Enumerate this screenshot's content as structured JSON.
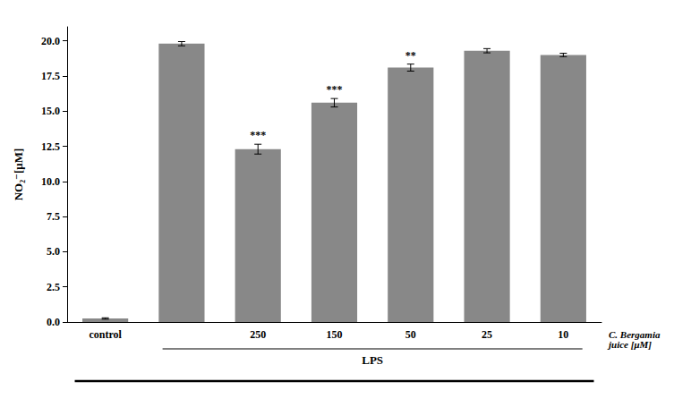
{
  "chart_data": {
    "type": "bar",
    "categories": [
      "control",
      null,
      "250",
      "150",
      "50",
      "25",
      "10"
    ],
    "values": [
      0.25,
      19.8,
      12.3,
      15.6,
      18.1,
      19.3,
      19.0
    ],
    "errors": [
      0.05,
      0.15,
      0.35,
      0.3,
      0.25,
      0.15,
      0.12
    ],
    "color": "#888888",
    "ylabel": "NO₂⁻[μM]",
    "xlabel": "C. Bergamia\njuice [μM]",
    "ylim": [
      0.0,
      21.0
    ],
    "yticks": [
      {
        "value": 0,
        "label": "0.0"
      },
      2.5,
      {
        "value": 5,
        "label": "5.0"
      },
      7.5,
      {
        "value": 10,
        "label": "10.0"
      },
      12.5,
      {
        "value": 15,
        "label": "15.0"
      },
      17.5,
      {
        "value": 20,
        "label": "20.0"
      }
    ],
    "grid": false,
    "annotations": [
      {
        "text": "***",
        "category": "250"
      },
      {
        "text": "***",
        "category": "150"
      },
      {
        "text": "**",
        "category": "50"
      },
      {
        "text": "LPS",
        "span": [
          1,
          6
        ]
      }
    ]
  }
}
